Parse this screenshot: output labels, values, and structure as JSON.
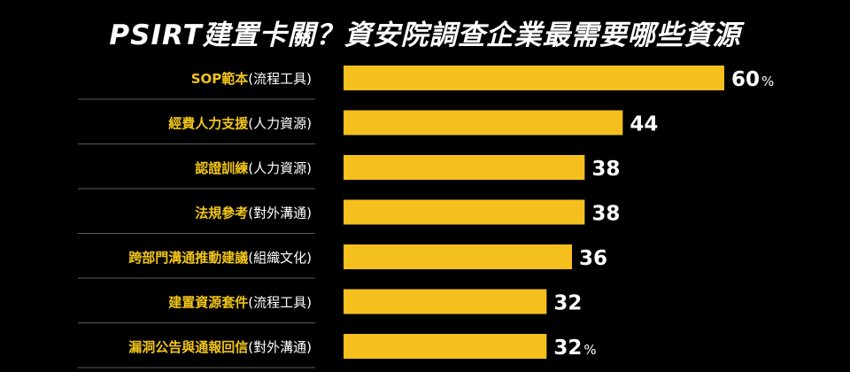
{
  "colors": {
    "background": "#000000",
    "bar": "#F5BF1E",
    "category_highlight": "#F0C419",
    "text": "#ffffff",
    "divider": "#5a5a5a"
  },
  "chart_data": {
    "type": "bar",
    "orientation": "horizontal",
    "title": "PSIRT建置卡關？資安院調查企業最需要哪些資源",
    "categories": [
      {
        "main": "SOP範本",
        "sub": "(流程工具)"
      },
      {
        "main": "經費人力支援",
        "sub": "(人力資源)"
      },
      {
        "main": "認證訓練",
        "sub": "(人力資源)"
      },
      {
        "main": "法規參考",
        "sub": "(對外溝通)"
      },
      {
        "main": "跨部門溝通推動建議",
        "sub": "(組織文化)"
      },
      {
        "main": "建置資源套件",
        "sub": "(流程工具)"
      },
      {
        "main": "漏洞公告與通報回信",
        "sub": "(對外溝通)"
      }
    ],
    "values": [
      60,
      44,
      38,
      38,
      36,
      32,
      32
    ],
    "value_labels": [
      "60",
      "44",
      "38",
      "38",
      "36",
      "32",
      "32"
    ],
    "value_units": [
      "%",
      "",
      "",
      "",
      "",
      "",
      "%"
    ],
    "unit": "%",
    "xlim": [
      0,
      60
    ],
    "grid": false,
    "legend": "none"
  }
}
